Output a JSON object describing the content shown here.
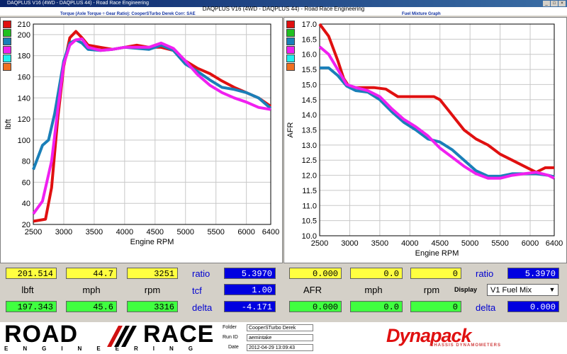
{
  "window": {
    "title": "DAQPLUS V16 (4WD - DAQPLUS 44) - Road Race Engineering",
    "header": "DAQPLUS V16 (4WD - DAQPLUS 44) - Road Race Engineering",
    "left_sub": "Torque (Axle Torque ÷ Gear Ratio): CooperSTurbo Derek     Corr: SAE",
    "right_sub": "Fuel Mixture Graph"
  },
  "colors": {
    "red": "#e01010",
    "blue": "#1a7fb8",
    "magenta": "#f020f0",
    "swatches": [
      "#e01010",
      "#20c020",
      "#1a7fb8",
      "#f020f0",
      "#20f0f0",
      "#f07020"
    ]
  },
  "chart_data": [
    {
      "type": "line",
      "xlabel": "Engine RPM",
      "ylabel": "lbft",
      "xlim": [
        2500,
        6400
      ],
      "ylim": [
        20,
        210
      ],
      "xticks": [
        2500,
        3000,
        3500,
        4000,
        4500,
        5000,
        5500,
        6000,
        6400
      ],
      "yticks": [
        20,
        40,
        60,
        80,
        100,
        120,
        140,
        160,
        180,
        200,
        210
      ],
      "grid": true,
      "series": [
        {
          "color": "red",
          "x": [
            2500,
            2700,
            2800,
            2900,
            3000,
            3100,
            3200,
            3300,
            3400,
            3600,
            3800,
            4000,
            4200,
            4400,
            4600,
            4800,
            5000,
            5200,
            5400,
            5600,
            5800,
            6000,
            6200,
            6400
          ],
          "y": [
            23,
            25,
            55,
            120,
            170,
            197,
            203,
            197,
            190,
            188,
            186,
            188,
            190,
            188,
            188,
            185,
            175,
            168,
            163,
            156,
            150,
            145,
            140,
            132
          ]
        },
        {
          "color": "blue",
          "x": [
            2500,
            2650,
            2750,
            2850,
            3000,
            3100,
            3200,
            3300,
            3400,
            3600,
            3800,
            4000,
            4200,
            4400,
            4600,
            4800,
            5000,
            5200,
            5400,
            5600,
            5800,
            6000,
            6200,
            6400
          ],
          "y": [
            72,
            95,
            100,
            125,
            175,
            192,
            195,
            192,
            186,
            185,
            186,
            188,
            187,
            186,
            190,
            185,
            172,
            165,
            157,
            150,
            148,
            145,
            140,
            130
          ]
        },
        {
          "color": "magenta",
          "x": [
            2500,
            2650,
            2800,
            2900,
            3000,
            3100,
            3200,
            3300,
            3400,
            3600,
            3800,
            4000,
            4200,
            4400,
            4600,
            4800,
            5000,
            5200,
            5400,
            5600,
            5800,
            6000,
            6200,
            6400
          ],
          "y": [
            30,
            42,
            80,
            128,
            172,
            190,
            195,
            196,
            188,
            185,
            186,
            188,
            188,
            188,
            192,
            187,
            175,
            162,
            152,
            145,
            140,
            136,
            131,
            129
          ]
        }
      ]
    },
    {
      "type": "line",
      "xlabel": "Engine RPM",
      "ylabel": "AFR",
      "xlim": [
        2500,
        6400
      ],
      "ylim": [
        10.0,
        17.0
      ],
      "xticks": [
        2500,
        3000,
        3500,
        4000,
        4500,
        5000,
        5500,
        6000,
        6400
      ],
      "yticks": [
        10.0,
        10.5,
        11.0,
        11.5,
        12.0,
        12.5,
        13.0,
        13.5,
        14.0,
        14.5,
        15.0,
        15.5,
        16.0,
        16.5,
        17.0
      ],
      "grid": true,
      "series": [
        {
          "color": "red",
          "x": [
            2500,
            2650,
            2800,
            2900,
            3000,
            3200,
            3400,
            3600,
            3800,
            4000,
            4200,
            4400,
            4500,
            4700,
            4900,
            5100,
            5300,
            5500,
            5700,
            5900,
            6100,
            6250,
            6400
          ],
          "y": [
            17.0,
            16.6,
            15.8,
            15.2,
            14.9,
            14.9,
            14.9,
            14.85,
            14.6,
            14.6,
            14.6,
            14.6,
            14.5,
            14.0,
            13.5,
            13.2,
            13.0,
            12.7,
            12.5,
            12.3,
            12.1,
            12.25,
            12.25
          ]
        },
        {
          "color": "blue",
          "x": [
            2500,
            2650,
            2800,
            2950,
            3100,
            3300,
            3500,
            3700,
            3900,
            4100,
            4300,
            4500,
            4700,
            4900,
            5100,
            5300,
            5500,
            5700,
            5900,
            6100,
            6300,
            6400
          ],
          "y": [
            15.55,
            15.55,
            15.3,
            14.95,
            14.8,
            14.75,
            14.5,
            14.1,
            13.75,
            13.5,
            13.2,
            13.1,
            12.85,
            12.5,
            12.15,
            11.97,
            11.97,
            12.05,
            12.05,
            12.05,
            12.0,
            11.95
          ]
        },
        {
          "color": "magenta",
          "x": [
            2500,
            2650,
            2800,
            2950,
            3100,
            3300,
            3500,
            3700,
            3900,
            4100,
            4300,
            4500,
            4700,
            4900,
            5100,
            5300,
            5500,
            5700,
            5900,
            6100,
            6300,
            6400
          ],
          "y": [
            16.25,
            16.0,
            15.5,
            15.0,
            14.9,
            14.8,
            14.6,
            14.2,
            13.85,
            13.6,
            13.3,
            12.9,
            12.6,
            12.3,
            12.05,
            11.9,
            11.9,
            12.0,
            12.05,
            12.1,
            12.0,
            11.9
          ]
        }
      ]
    }
  ],
  "left_readout": {
    "row1": [
      "201.514",
      "44.7",
      "3251"
    ],
    "labels": [
      "lbft",
      "mph",
      "rpm"
    ],
    "row3": [
      "197.343",
      "45.6",
      "3316"
    ],
    "ratio_label": "ratio",
    "ratio_value": "5.3970",
    "tcf_label": "tcf",
    "tcf_value": "1.00",
    "delta_label": "delta",
    "delta_value": "-4.171"
  },
  "right_readout": {
    "row1": [
      "0.000",
      "0.0",
      "0"
    ],
    "labels": [
      "AFR",
      "mph",
      "rpm"
    ],
    "row3": [
      "0.000",
      "0.0",
      "0"
    ],
    "ratio_label": "ratio",
    "ratio_value": "5.3970",
    "display_label": "Display",
    "display_value": "V1 Fuel Mix",
    "delta_label": "delta",
    "delta_value": "0.000"
  },
  "footer": {
    "logo_top": "ROAD",
    "logo_top2": "RACE",
    "logo_bottom": "ENGINEERING",
    "folder_label": "Folder",
    "folder_value": "CooperSTurbo Derek",
    "runid_label": "Run ID",
    "runid_value": "aemintake",
    "date_label": "Date",
    "date_value": "2012-04-29 13:09:43",
    "brand": "Dynapack",
    "brand_sub": "CHASSIS DYNAMOMETERS"
  }
}
